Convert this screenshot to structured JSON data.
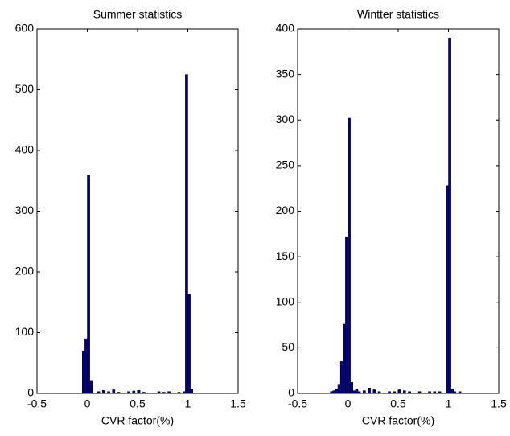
{
  "chart_data": [
    {
      "type": "histogram",
      "title": "Summer statistics",
      "x_label": "CVR factor(%)",
      "color": "#000080",
      "bins": [
        -0.2,
        -0.175,
        -0.15,
        -0.125,
        -0.1,
        -0.075,
        -0.05,
        -0.025,
        0,
        0.025,
        0.05,
        0.075,
        0.1,
        0.125,
        0.15,
        0.175,
        0.2,
        0.225,
        0.25,
        0.275,
        0.3,
        0.325,
        0.35,
        0.375,
        0.4,
        0.425,
        0.45,
        0.475,
        0.5,
        0.525,
        0.55,
        0.575,
        0.6,
        0.625,
        0.65,
        0.675,
        0.7,
        0.725,
        0.75,
        0.775,
        0.8,
        0.825,
        0.85,
        0.875,
        0.9,
        0.925,
        0.95,
        0.975,
        1,
        1.025,
        1.05,
        1.075,
        1.1,
        1.125,
        1.15,
        1.175,
        1.2
      ],
      "values": [
        0,
        0,
        0,
        0,
        0,
        0,
        70,
        90,
        360,
        20,
        0,
        0,
        3,
        0,
        5,
        0,
        3,
        0,
        6,
        0,
        2,
        0,
        0,
        0,
        3,
        0,
        4,
        0,
        5,
        0,
        2,
        0,
        0,
        0,
        0,
        0,
        3,
        0,
        2,
        0,
        3,
        0,
        0,
        0,
        2,
        0,
        3,
        525,
        163,
        7,
        0,
        0,
        0,
        0,
        0,
        0
      ],
      "xlim": [
        -0.5,
        1.5
      ],
      "xticks": [
        -0.5,
        0,
        0.5,
        1,
        1.5
      ],
      "ylim": [
        0,
        600
      ],
      "yticks": [
        0,
        100,
        200,
        300,
        400,
        500,
        600
      ]
    },
    {
      "type": "histogram",
      "title": "Wintter statistics",
      "x_label": "CVR factor(%)",
      "color": "#000080",
      "bins": [
        -0.2,
        -0.175,
        -0.15,
        -0.125,
        -0.1,
        -0.075,
        -0.05,
        -0.025,
        0,
        0.025,
        0.05,
        0.075,
        0.1,
        0.125,
        0.15,
        0.175,
        0.2,
        0.225,
        0.25,
        0.275,
        0.3,
        0.325,
        0.35,
        0.375,
        0.4,
        0.425,
        0.45,
        0.475,
        0.5,
        0.525,
        0.55,
        0.575,
        0.6,
        0.625,
        0.65,
        0.675,
        0.7,
        0.725,
        0.75,
        0.775,
        0.8,
        0.825,
        0.85,
        0.875,
        0.9,
        0.925,
        0.95,
        0.975,
        1,
        1.025,
        1.05,
        1.075,
        1.1,
        1.125,
        1.15,
        1.175,
        1.2
      ],
      "values": [
        0,
        2,
        3,
        5,
        10,
        35,
        76,
        172,
        302,
        12,
        3,
        5,
        2,
        0,
        3,
        0,
        6,
        0,
        4,
        0,
        2,
        0,
        0,
        0,
        2,
        0,
        2,
        0,
        4,
        0,
        3,
        0,
        2,
        0,
        0,
        0,
        2,
        0,
        0,
        0,
        2,
        0,
        2,
        0,
        2,
        0,
        0,
        228,
        390,
        5,
        2,
        0,
        2,
        0,
        0,
        0
      ],
      "xlim": [
        -0.5,
        1.5
      ],
      "xticks": [
        -0.5,
        0,
        0.5,
        1,
        1.5
      ],
      "ylim": [
        0,
        400
      ],
      "yticks": [
        0,
        50,
        100,
        150,
        200,
        250,
        300,
        350,
        400
      ]
    }
  ]
}
